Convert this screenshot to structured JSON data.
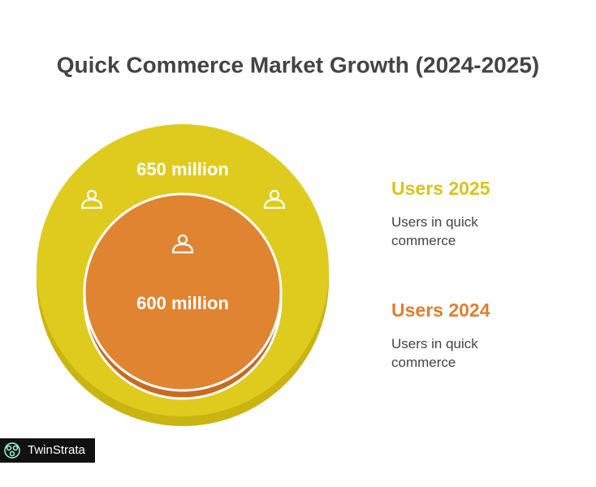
{
  "title": "Quick Commerce Market Growth (2024-2025)",
  "circles": [
    {
      "label": "650 million"
    },
    {
      "label": "600 million"
    }
  ],
  "legend": [
    {
      "title": "Users 2025",
      "description": "Users in quick commerce"
    },
    {
      "title": "Users 2024",
      "description": "Users in quick commerce"
    }
  ],
  "watermark": "TwinStrata"
}
